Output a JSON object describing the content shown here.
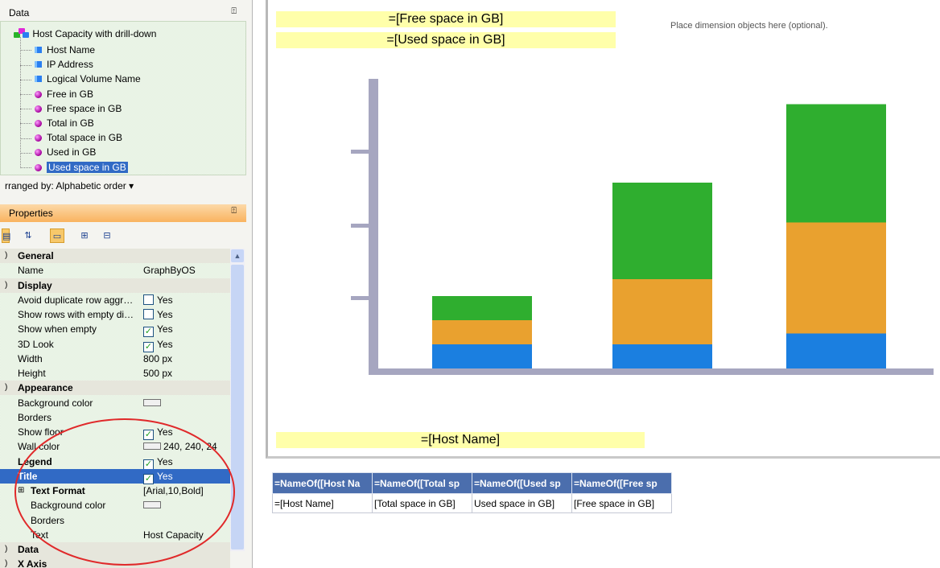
{
  "data_panel": {
    "title": "Data",
    "pin_glyph": "⍀",
    "root": "Host Capacity with drill-down",
    "items": [
      {
        "label": "Host Name",
        "kind": "dimension"
      },
      {
        "label": "IP Address",
        "kind": "dimension"
      },
      {
        "label": "Logical Volume Name",
        "kind": "dimension"
      },
      {
        "label": "Free in GB",
        "kind": "measure"
      },
      {
        "label": "Free space in GB",
        "kind": "measure"
      },
      {
        "label": "Total in GB",
        "kind": "measure"
      },
      {
        "label": "Total space in GB",
        "kind": "measure"
      },
      {
        "label": "Used in GB",
        "kind": "measure"
      },
      {
        "label": "Used space in GB",
        "kind": "measure",
        "selected": true
      }
    ],
    "arranged_by": "rranged by: Alphabetic order ▾"
  },
  "properties_panel": {
    "title": "Properties",
    "rows": [
      {
        "type": "cat",
        "name": "General"
      },
      {
        "type": "prop",
        "name": "Name",
        "value": "GraphByOS"
      },
      {
        "type": "cat",
        "name": "Display"
      },
      {
        "type": "prop",
        "name": "Avoid duplicate row aggr…",
        "check": false,
        "value": "Yes"
      },
      {
        "type": "prop",
        "name": "Show rows with empty di…",
        "check": false,
        "value": "Yes"
      },
      {
        "type": "prop",
        "name": "Show when empty",
        "check": true,
        "value": "Yes"
      },
      {
        "type": "prop",
        "name": "3D Look",
        "check": true,
        "value": "Yes"
      },
      {
        "type": "prop",
        "name": "Width",
        "value": "800 px"
      },
      {
        "type": "prop",
        "name": "Height",
        "value": "500 px"
      },
      {
        "type": "cat",
        "name": "Appearance"
      },
      {
        "type": "prop",
        "name": "Background color",
        "swatch": true,
        "value": ""
      },
      {
        "type": "prop",
        "name": "Borders",
        "value": ""
      },
      {
        "type": "prop",
        "name": "Show floor",
        "check": true,
        "value": "Yes"
      },
      {
        "type": "prop",
        "name": "Wall color",
        "swatch": true,
        "value": "240, 240, 24"
      },
      {
        "type": "prop",
        "name": "Legend",
        "check": true,
        "value": "Yes",
        "bold": true
      },
      {
        "type": "prop",
        "name": "Title",
        "check": true,
        "value": "Yes",
        "bold": true,
        "selected": true
      },
      {
        "type": "sub",
        "name": "Text Format",
        "value": "[Arial,10,Bold]",
        "bold": true
      },
      {
        "type": "sub",
        "name": "Background color",
        "swatch": true,
        "value": ""
      },
      {
        "type": "sub",
        "name": "Borders",
        "value": ""
      },
      {
        "type": "sub",
        "name": "Text",
        "value": "Host Capacity"
      },
      {
        "type": "cat",
        "name": "Data"
      },
      {
        "type": "cat",
        "name": "X Axis"
      }
    ]
  },
  "report": {
    "series_label_1": "=[Free space in GB]",
    "series_label_2": "=[Used space in GB]",
    "dimension_placeholder": "Place dimension objects here (optional).",
    "category_label": "=[Host Name]",
    "table": {
      "headers": [
        "=NameOf([Host Na",
        "=NameOf([Total sp",
        "=NameOf([Used sp",
        "=NameOf([Free sp"
      ],
      "row": [
        "=[Host Name]",
        "[Total space in GB]",
        "Used space in GB]",
        "[Free space in GB]"
      ]
    }
  },
  "chart_data": {
    "type": "bar",
    "stacked": true,
    "categories": [
      "",
      "",
      ""
    ],
    "series": [
      {
        "color": "#1b7fe0",
        "values": [
          1,
          1,
          1.45
        ]
      },
      {
        "color": "#e9a12f",
        "values": [
          1,
          2.7,
          4.6
        ]
      },
      {
        "color": "#2fae2f",
        "values": [
          1,
          4,
          4.9
        ]
      }
    ],
    "ylim": [
      0,
      12
    ],
    "grid": false
  }
}
